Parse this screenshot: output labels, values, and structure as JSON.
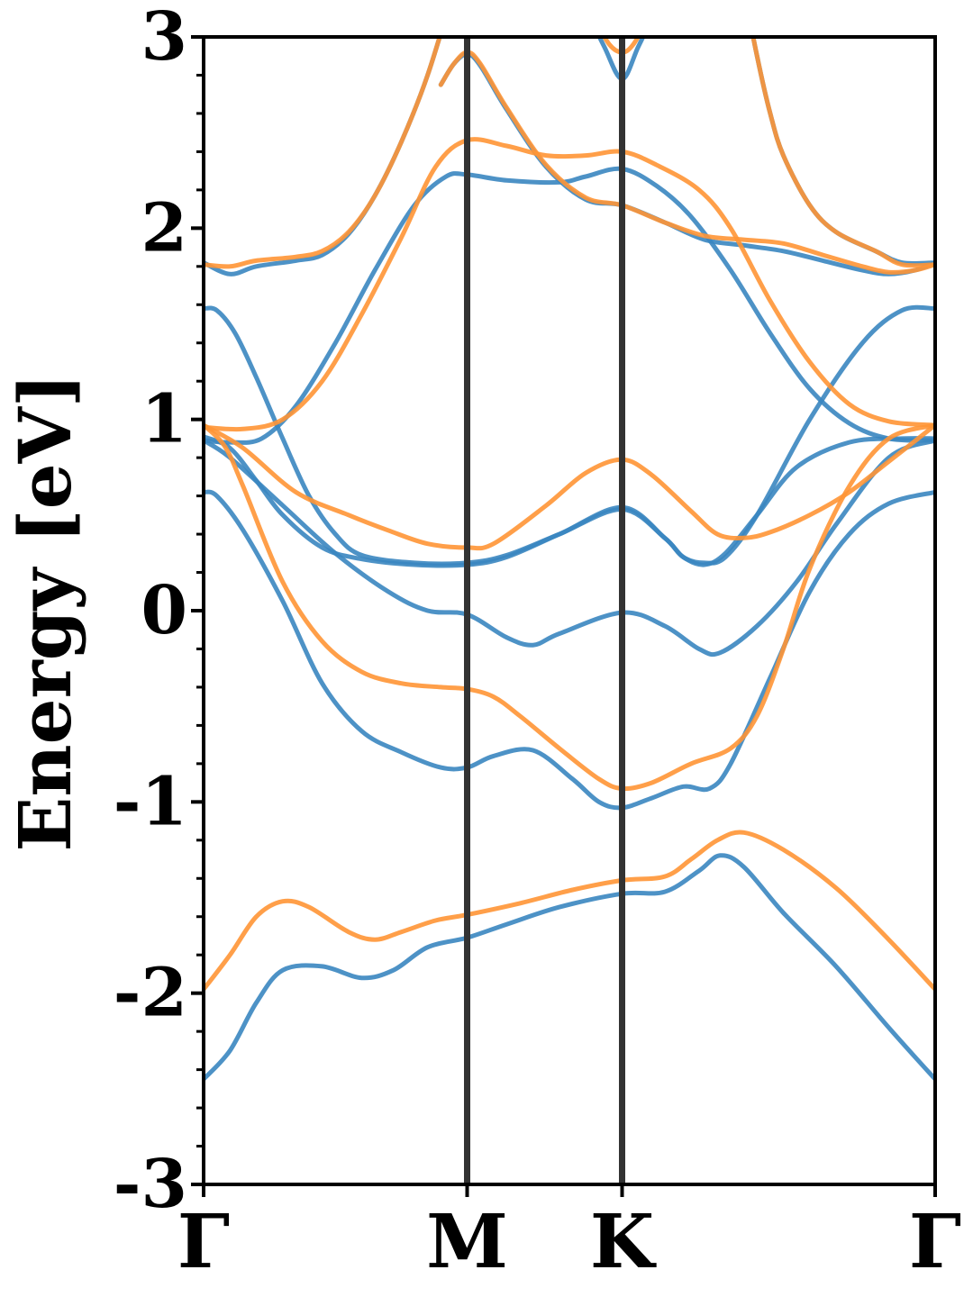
{
  "chart_data": {
    "type": "line",
    "title": "",
    "xlabel": "",
    "ylabel": "Energy [eV]",
    "ylim": [
      -3,
      3
    ],
    "xlim": [
      0,
      2.776
    ],
    "yticks": [
      -3,
      -2,
      -1,
      0,
      1,
      2,
      3
    ],
    "ytick_labels": [
      "-3",
      "-2",
      "-1",
      "0",
      "1",
      "2",
      "3"
    ],
    "yminor_step": 0.2,
    "high_symmetry_points": [
      {
        "label": "Γ",
        "x": 0
      },
      {
        "label": "M",
        "x": 1.0
      },
      {
        "label": "K",
        "x": 1.588
      },
      {
        "label": "Γ",
        "x": 2.776
      }
    ],
    "vertical_lines_at": [
      1.0,
      1.588
    ],
    "grid": false,
    "legend": "none",
    "colors": {
      "spin_a": "#3a86c0",
      "spin_b": "#ff9535",
      "vline": "#333333"
    },
    "series": [
      {
        "group": "spin_a",
        "points": [
          [
            0,
            -2.45
          ],
          [
            0.1,
            -2.3
          ],
          [
            0.2,
            -2.05
          ],
          [
            0.3,
            -1.88
          ],
          [
            0.45,
            -1.86
          ],
          [
            0.6,
            -1.92
          ],
          [
            0.72,
            -1.88
          ],
          [
            0.85,
            -1.76
          ],
          [
            1.0,
            -1.71
          ],
          [
            1.15,
            -1.64
          ],
          [
            1.35,
            -1.55
          ],
          [
            1.588,
            -1.48
          ],
          [
            1.75,
            -1.47
          ],
          [
            1.88,
            -1.36
          ],
          [
            1.96,
            -1.28
          ],
          [
            2.05,
            -1.34
          ],
          [
            2.2,
            -1.58
          ],
          [
            2.4,
            -1.86
          ],
          [
            2.6,
            -2.18
          ],
          [
            2.776,
            -2.45
          ]
        ]
      },
      {
        "group": "spin_a",
        "points": [
          [
            0,
            0.62
          ],
          [
            0.05,
            0.6
          ],
          [
            0.15,
            0.42
          ],
          [
            0.3,
            0.05
          ],
          [
            0.45,
            -0.38
          ],
          [
            0.6,
            -0.63
          ],
          [
            0.75,
            -0.74
          ],
          [
            0.9,
            -0.82
          ],
          [
            1.0,
            -0.82
          ],
          [
            1.1,
            -0.76
          ],
          [
            1.25,
            -0.73
          ],
          [
            1.4,
            -0.88
          ],
          [
            1.5,
            -1.0
          ],
          [
            1.588,
            -1.03
          ],
          [
            1.7,
            -0.98
          ],
          [
            1.82,
            -0.92
          ],
          [
            1.92,
            -0.93
          ],
          [
            2.0,
            -0.8
          ],
          [
            2.15,
            -0.35
          ],
          [
            2.3,
            0.1
          ],
          [
            2.45,
            0.4
          ],
          [
            2.6,
            0.56
          ],
          [
            2.776,
            0.62
          ]
        ]
      },
      {
        "group": "spin_a",
        "points": [
          [
            0,
            0.89
          ],
          [
            0.1,
            0.8
          ],
          [
            0.3,
            0.55
          ],
          [
            0.5,
            0.3
          ],
          [
            0.7,
            0.1
          ],
          [
            0.85,
            0.0
          ],
          [
            1.0,
            -0.02
          ],
          [
            1.15,
            -0.14
          ],
          [
            1.25,
            -0.18
          ],
          [
            1.35,
            -0.12
          ],
          [
            1.588,
            -0.01
          ],
          [
            1.75,
            -0.08
          ],
          [
            1.88,
            -0.2
          ],
          [
            1.96,
            -0.22
          ],
          [
            2.1,
            -0.08
          ],
          [
            2.25,
            0.15
          ],
          [
            2.4,
            0.45
          ],
          [
            2.6,
            0.8
          ],
          [
            2.776,
            0.89
          ]
        ]
      },
      {
        "group": "spin_a",
        "points": [
          [
            0,
            0.91
          ],
          [
            0.1,
            0.85
          ],
          [
            0.2,
            0.68
          ],
          [
            0.3,
            0.5
          ],
          [
            0.45,
            0.33
          ],
          [
            0.6,
            0.27
          ],
          [
            0.8,
            0.24
          ],
          [
            1.0,
            0.24
          ],
          [
            1.15,
            0.28
          ],
          [
            1.35,
            0.4
          ],
          [
            1.588,
            0.54
          ],
          [
            1.75,
            0.38
          ],
          [
            1.82,
            0.28
          ],
          [
            1.9,
            0.25
          ],
          [
            1.98,
            0.28
          ],
          [
            2.1,
            0.5
          ],
          [
            2.3,
            1.0
          ],
          [
            2.5,
            1.4
          ],
          [
            2.65,
            1.57
          ],
          [
            2.776,
            1.58
          ]
        ]
      },
      {
        "group": "spin_a",
        "points": [
          [
            0,
            1.58
          ],
          [
            0.05,
            1.57
          ],
          [
            0.12,
            1.45
          ],
          [
            0.2,
            1.22
          ],
          [
            0.3,
            0.9
          ],
          [
            0.4,
            0.6
          ],
          [
            0.5,
            0.4
          ],
          [
            0.6,
            0.29
          ],
          [
            0.8,
            0.25
          ],
          [
            1.0,
            0.25
          ],
          [
            1.15,
            0.29
          ],
          [
            1.35,
            0.4
          ],
          [
            1.588,
            0.53
          ],
          [
            1.75,
            0.38
          ],
          [
            1.82,
            0.28
          ],
          [
            1.9,
            0.24
          ],
          [
            1.98,
            0.3
          ],
          [
            2.1,
            0.5
          ],
          [
            2.25,
            0.75
          ],
          [
            2.45,
            0.88
          ],
          [
            2.65,
            0.9
          ],
          [
            2.776,
            0.9
          ]
        ]
      },
      {
        "group": "spin_a",
        "points": [
          [
            0,
            0.89
          ],
          [
            0.1,
            0.88
          ],
          [
            0.22,
            0.9
          ],
          [
            0.35,
            1.07
          ],
          [
            0.5,
            1.4
          ],
          [
            0.65,
            1.78
          ],
          [
            0.8,
            2.12
          ],
          [
            0.92,
            2.27
          ],
          [
            1.0,
            2.28
          ],
          [
            1.15,
            2.25
          ],
          [
            1.35,
            2.24
          ],
          [
            1.45,
            2.27
          ],
          [
            1.588,
            2.31
          ],
          [
            1.72,
            2.22
          ],
          [
            1.85,
            2.06
          ],
          [
            2.0,
            1.78
          ],
          [
            2.15,
            1.45
          ],
          [
            2.3,
            1.16
          ],
          [
            2.45,
            0.98
          ],
          [
            2.6,
            0.9
          ],
          [
            2.776,
            0.89
          ]
        ]
      },
      {
        "group": "spin_a",
        "points": [
          [
            0,
            1.82
          ],
          [
            0.1,
            1.76
          ],
          [
            0.2,
            1.8
          ],
          [
            0.35,
            1.83
          ],
          [
            0.45,
            1.86
          ],
          [
            0.55,
            1.97
          ],
          [
            0.65,
            2.17
          ],
          [
            0.75,
            2.45
          ],
          [
            0.85,
            2.8
          ],
          [
            0.95,
            3.25
          ]
        ]
      },
      {
        "group": "spin_a",
        "points": [
          [
            0.9,
            2.75
          ],
          [
            0.95,
            2.86
          ],
          [
            1.0,
            2.91
          ],
          [
            1.05,
            2.85
          ],
          [
            1.15,
            2.62
          ],
          [
            1.3,
            2.32
          ],
          [
            1.45,
            2.15
          ],
          [
            1.588,
            2.12
          ],
          [
            1.75,
            2.03
          ],
          [
            1.9,
            1.94
          ],
          [
            2.05,
            1.91
          ],
          [
            2.2,
            1.88
          ],
          [
            2.35,
            1.83
          ],
          [
            2.5,
            1.78
          ],
          [
            2.6,
            1.76
          ],
          [
            2.7,
            1.78
          ],
          [
            2.776,
            1.82
          ]
        ]
      },
      {
        "group": "spin_a",
        "points": [
          [
            1.45,
            3.15
          ],
          [
            1.52,
            2.95
          ],
          [
            1.588,
            2.78
          ],
          [
            1.65,
            2.95
          ],
          [
            1.72,
            3.15
          ]
        ]
      },
      {
        "group": "spin_a",
        "points": [
          [
            2.05,
            3.25
          ],
          [
            2.1,
            2.9
          ],
          [
            2.15,
            2.6
          ],
          [
            2.2,
            2.38
          ],
          [
            2.3,
            2.12
          ],
          [
            2.4,
            1.98
          ],
          [
            2.55,
            1.88
          ],
          [
            2.65,
            1.82
          ],
          [
            2.776,
            1.82
          ]
        ]
      },
      {
        "group": "spin_b",
        "points": [
          [
            0,
            -1.98
          ],
          [
            0.1,
            -1.8
          ],
          [
            0.2,
            -1.6
          ],
          [
            0.3,
            -1.52
          ],
          [
            0.4,
            -1.55
          ],
          [
            0.55,
            -1.68
          ],
          [
            0.65,
            -1.72
          ],
          [
            0.75,
            -1.68
          ],
          [
            0.88,
            -1.62
          ],
          [
            1.0,
            -1.59
          ],
          [
            1.2,
            -1.53
          ],
          [
            1.4,
            -1.46
          ],
          [
            1.588,
            -1.41
          ],
          [
            1.75,
            -1.39
          ],
          [
            1.85,
            -1.3
          ],
          [
            1.95,
            -1.2
          ],
          [
            2.05,
            -1.16
          ],
          [
            2.2,
            -1.25
          ],
          [
            2.4,
            -1.45
          ],
          [
            2.6,
            -1.72
          ],
          [
            2.776,
            -1.98
          ]
        ]
      },
      {
        "group": "spin_b",
        "points": [
          [
            0,
            0.97
          ],
          [
            0.08,
            0.86
          ],
          [
            0.15,
            0.65
          ],
          [
            0.3,
            0.15
          ],
          [
            0.45,
            -0.16
          ],
          [
            0.6,
            -0.32
          ],
          [
            0.75,
            -0.38
          ],
          [
            0.9,
            -0.4
          ],
          [
            1.0,
            -0.41
          ],
          [
            1.1,
            -0.45
          ],
          [
            1.2,
            -0.55
          ],
          [
            1.35,
            -0.72
          ],
          [
            1.5,
            -0.88
          ],
          [
            1.588,
            -0.93
          ],
          [
            1.7,
            -0.9
          ],
          [
            1.85,
            -0.8
          ],
          [
            2.0,
            -0.72
          ],
          [
            2.1,
            -0.55
          ],
          [
            2.2,
            -0.2
          ],
          [
            2.3,
            0.22
          ],
          [
            2.45,
            0.65
          ],
          [
            2.6,
            0.9
          ],
          [
            2.776,
            0.97
          ]
        ]
      },
      {
        "group": "spin_b",
        "points": [
          [
            0,
            0.97
          ],
          [
            0.15,
            0.85
          ],
          [
            0.35,
            0.62
          ],
          [
            0.55,
            0.5
          ],
          [
            0.7,
            0.42
          ],
          [
            0.85,
            0.35
          ],
          [
            1.0,
            0.33
          ],
          [
            1.1,
            0.35
          ],
          [
            1.3,
            0.55
          ],
          [
            1.45,
            0.72
          ],
          [
            1.588,
            0.79
          ],
          [
            1.7,
            0.71
          ],
          [
            1.85,
            0.52
          ],
          [
            1.95,
            0.4
          ],
          [
            2.05,
            0.38
          ],
          [
            2.15,
            0.41
          ],
          [
            2.3,
            0.5
          ],
          [
            2.45,
            0.62
          ],
          [
            2.6,
            0.78
          ],
          [
            2.776,
            0.97
          ]
        ]
      },
      {
        "group": "spin_b",
        "points": [
          [
            0,
            0.96
          ],
          [
            0.15,
            0.95
          ],
          [
            0.3,
            1.0
          ],
          [
            0.45,
            1.2
          ],
          [
            0.6,
            1.55
          ],
          [
            0.75,
            1.95
          ],
          [
            0.88,
            2.32
          ],
          [
            1.0,
            2.46
          ],
          [
            1.15,
            2.43
          ],
          [
            1.3,
            2.38
          ],
          [
            1.45,
            2.38
          ],
          [
            1.588,
            2.4
          ],
          [
            1.72,
            2.33
          ],
          [
            1.88,
            2.2
          ],
          [
            2.0,
            2.0
          ],
          [
            2.15,
            1.62
          ],
          [
            2.3,
            1.3
          ],
          [
            2.45,
            1.08
          ],
          [
            2.6,
            0.99
          ],
          [
            2.776,
            0.97
          ]
        ]
      },
      {
        "group": "spin_b",
        "points": [
          [
            0,
            1.81
          ],
          [
            0.1,
            1.8
          ],
          [
            0.2,
            1.83
          ],
          [
            0.35,
            1.85
          ],
          [
            0.45,
            1.88
          ],
          [
            0.55,
            1.98
          ],
          [
            0.65,
            2.17
          ],
          [
            0.75,
            2.45
          ],
          [
            0.85,
            2.8
          ],
          [
            0.95,
            3.25
          ]
        ]
      },
      {
        "group": "spin_b",
        "points": [
          [
            0.9,
            2.75
          ],
          [
            0.95,
            2.86
          ],
          [
            1.0,
            2.92
          ],
          [
            1.05,
            2.86
          ],
          [
            1.15,
            2.63
          ],
          [
            1.3,
            2.33
          ],
          [
            1.45,
            2.16
          ],
          [
            1.588,
            2.12
          ],
          [
            1.75,
            2.03
          ],
          [
            1.9,
            1.96
          ],
          [
            2.05,
            1.94
          ],
          [
            2.2,
            1.92
          ],
          [
            2.35,
            1.86
          ],
          [
            2.5,
            1.8
          ],
          [
            2.6,
            1.77
          ],
          [
            2.7,
            1.78
          ],
          [
            2.776,
            1.81
          ]
        ]
      },
      {
        "group": "spin_b",
        "points": [
          [
            1.48,
            3.1
          ],
          [
            1.54,
            2.96
          ],
          [
            1.588,
            2.92
          ],
          [
            1.63,
            2.96
          ],
          [
            1.69,
            3.1
          ]
        ]
      },
      {
        "group": "spin_b",
        "points": [
          [
            2.05,
            3.25
          ],
          [
            2.1,
            2.9
          ],
          [
            2.15,
            2.6
          ],
          [
            2.2,
            2.38
          ],
          [
            2.3,
            2.12
          ],
          [
            2.4,
            1.98
          ],
          [
            2.55,
            1.88
          ],
          [
            2.65,
            1.81
          ],
          [
            2.776,
            1.81
          ]
        ]
      }
    ]
  }
}
